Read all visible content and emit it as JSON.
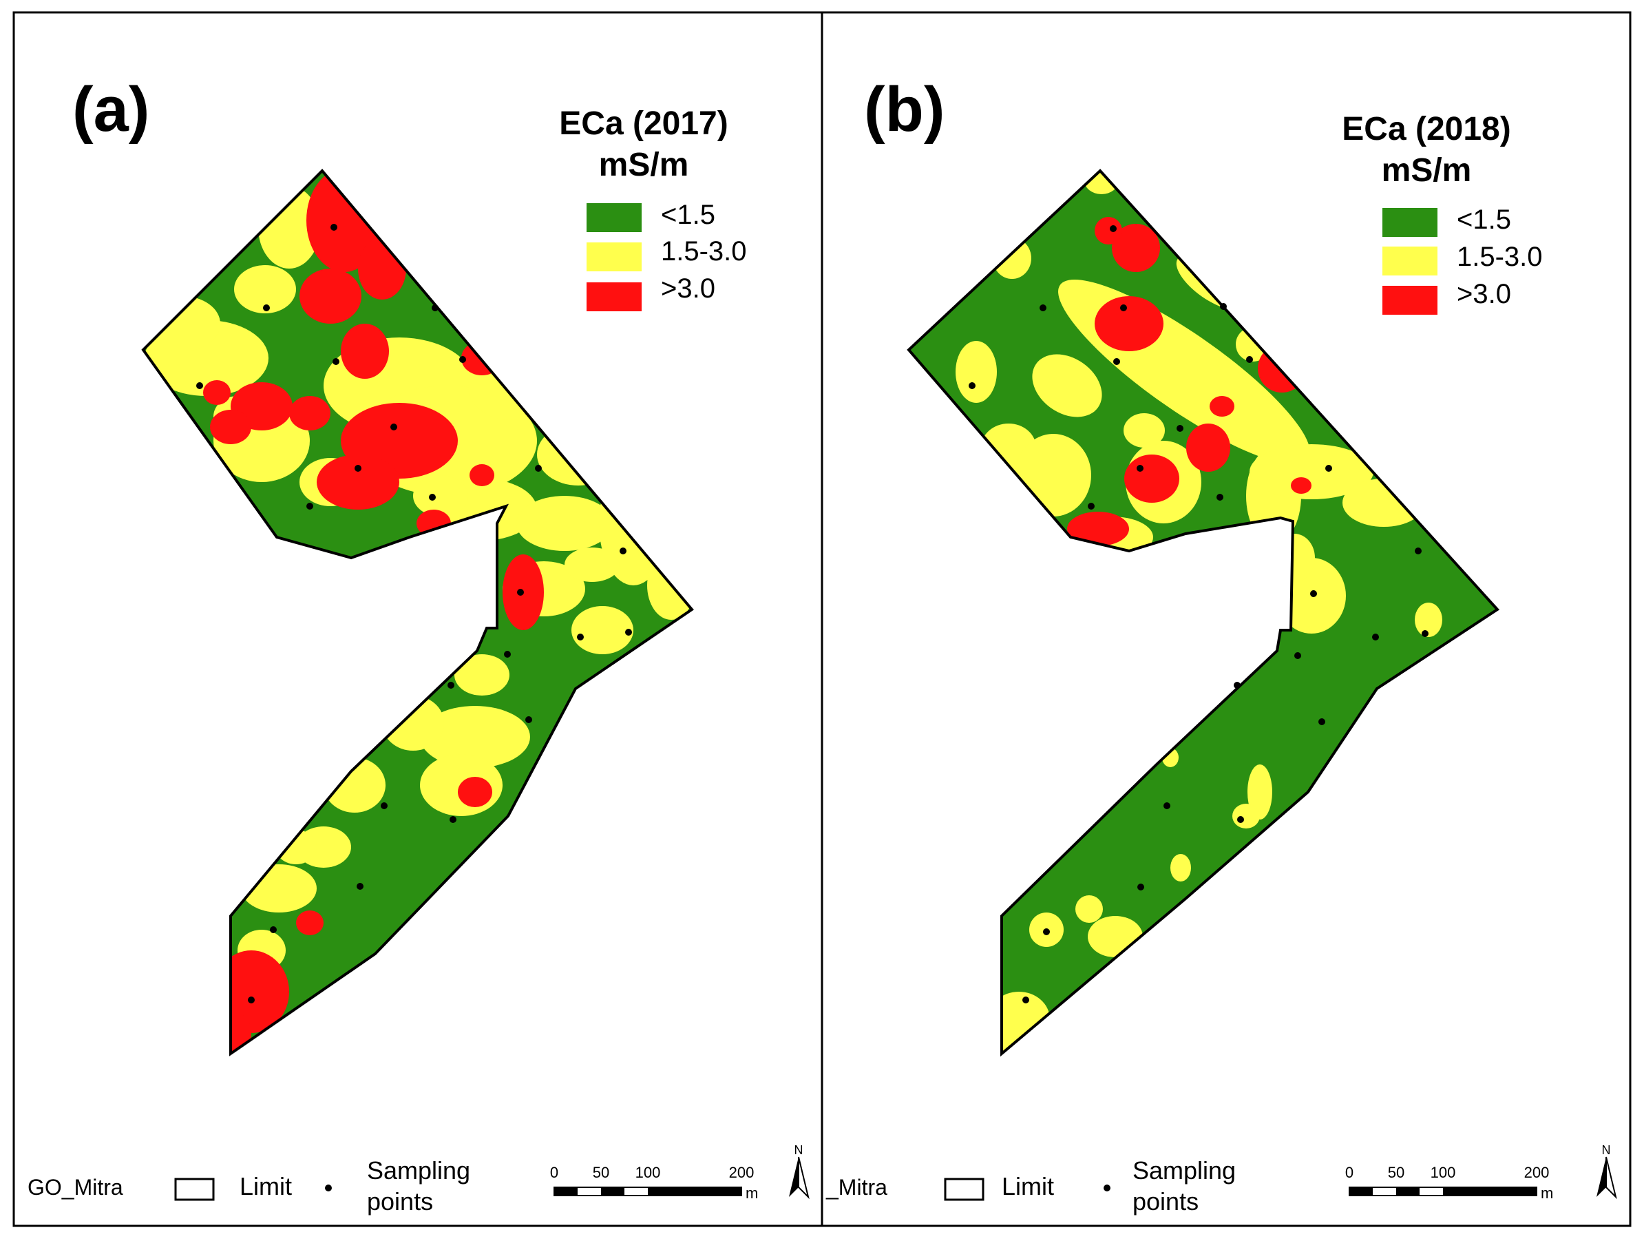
{
  "panels": [
    {
      "label": "(a)",
      "legend_title_line1": "ECa (2017)",
      "legend_title_line2": "mS/m",
      "classes": [
        {
          "label": "<1.5",
          "color": "#2b8f12"
        },
        {
          "label": "1.5-3.0",
          "color": "#ffff4d"
        },
        {
          "label": ">3.0",
          "color": "#ff1010"
        }
      ],
      "footer": {
        "field_name": "GO_Mitra",
        "limit_label": "Limit",
        "sampling_line1": "Sampling",
        "sampling_line2": "points",
        "scale_ticks": [
          "0",
          "50",
          "100",
          "200"
        ],
        "scale_unit": "m",
        "north": "N"
      }
    },
    {
      "label": "(b)",
      "legend_title_line1": "ECa (2018)",
      "legend_title_line2": "mS/m",
      "classes": [
        {
          "label": "<1.5",
          "color": "#2b8f12"
        },
        {
          "label": "1.5-3.0",
          "color": "#ffff4d"
        },
        {
          "label": ">3.0",
          "color": "#ff1010"
        }
      ],
      "footer": {
        "field_name": "_Mitra",
        "limit_label": "Limit",
        "sampling_line1": "Sampling",
        "sampling_line2": "points",
        "scale_ticks": [
          "0",
          "50",
          "100",
          "200"
        ],
        "scale_unit": "m",
        "north": "N"
      }
    }
  ]
}
